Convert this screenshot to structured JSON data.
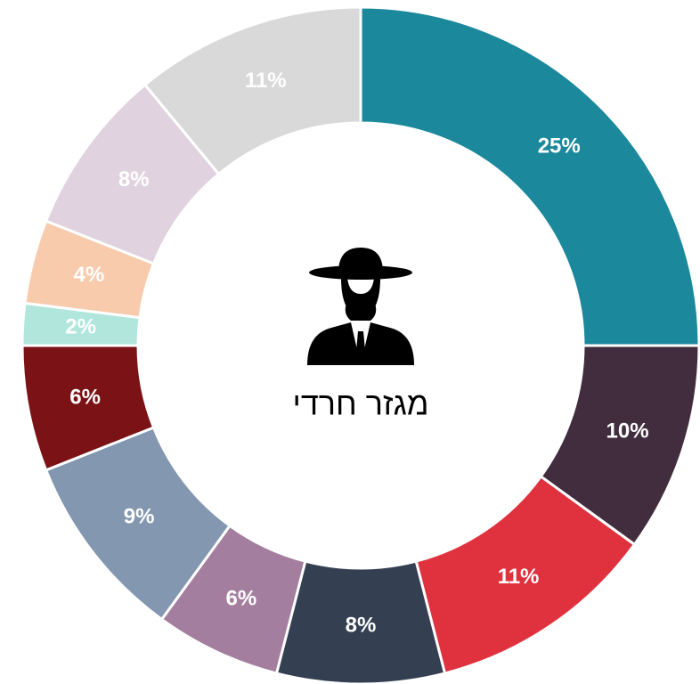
{
  "chart_data": {
    "type": "pie",
    "hole": true,
    "center_label": "מגזר חרדי",
    "values": [
      25,
      10,
      11,
      8,
      6,
      9,
      6,
      2,
      4,
      8,
      11
    ],
    "value_labels": [
      "25%",
      "10%",
      "11%",
      "8%",
      "6%",
      "9%",
      "6%",
      "2%",
      "4%",
      "8%",
      "11%"
    ],
    "colors": [
      "#1b889c",
      "#412d3e",
      "#e0323e",
      "#343f52",
      "#a47e9e",
      "#8497b0",
      "#7b1316",
      "#b0e6db",
      "#f8cbad",
      "#e0d3df",
      "#d9d9d9"
    ]
  }
}
